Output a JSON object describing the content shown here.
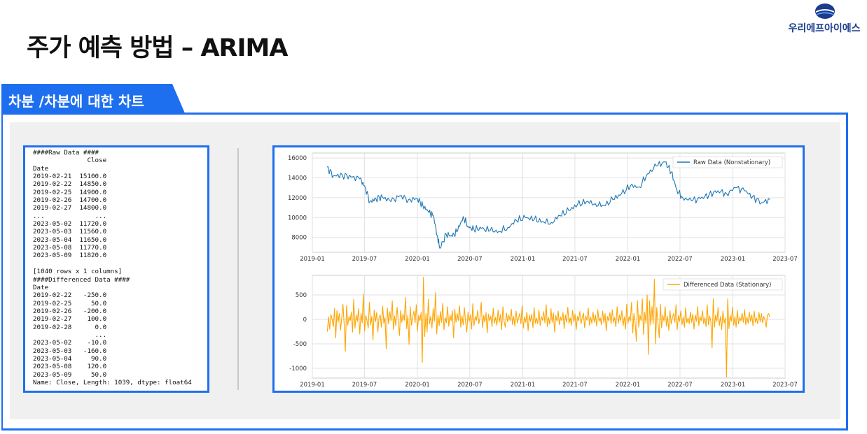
{
  "slide": {
    "title": "주가 예측 방법 – ARIMA",
    "logo_text": "우리에프아이에스",
    "section_label": "차분 /차분에 대한 차트"
  },
  "console": {
    "lines": [
      "####Raw Data ####",
      "              Close",
      "Date",
      "2019-02-21  15100.0",
      "2019-02-22  14850.0",
      "2019-02-25  14900.0",
      "2019-02-26  14700.0",
      "2019-02-27  14800.0",
      "...             ...",
      "2023-05-02  11720.0",
      "2023-05-03  11560.0",
      "2023-05-04  11650.0",
      "2023-05-08  11770.0",
      "2023-05-09  11820.0",
      "",
      "[1040 rows x 1 columns]",
      "####Differenced Data ####",
      "Date",
      "2019-02-22   -250.0",
      "2019-02-25     50.0",
      "2019-02-26   -200.0",
      "2019-02-27    100.0",
      "2019-02-28      0.0",
      "                ...",
      "2023-05-02    -10.0",
      "2023-05-03   -160.0",
      "2023-05-04     90.0",
      "2023-05-08    120.0",
      "2023-05-09     50.0",
      "Name: Close, Length: 1039, dtype: float64"
    ]
  },
  "chart_data": [
    {
      "type": "line",
      "legend": "Raw Data (Nonstationary)",
      "legend_position": "top-right",
      "color": "#1f77b4",
      "grid": true,
      "xlim": [
        "2019-01",
        "2023-07"
      ],
      "ylim": [
        6500,
        16500
      ],
      "x_ticks": [
        "2019-01",
        "2019-07",
        "2020-01",
        "2020-07",
        "2021-01",
        "2021-07",
        "2022-01",
        "2022-07",
        "2023-01",
        "2023-07"
      ],
      "y_ticks": [
        8000,
        10000,
        12000,
        14000,
        16000
      ],
      "series": [
        {
          "x": [
            "2019-02-21",
            "2019-03-15",
            "2019-04-15",
            "2019-05-15",
            "2019-06-15",
            "2019-07-01",
            "2019-07-20",
            "2019-08-10",
            "2019-09-01",
            "2019-10-01",
            "2019-11-01",
            "2019-12-01",
            "2020-01-01",
            "2020-01-20",
            "2020-02-10",
            "2020-02-25",
            "2020-03-10",
            "2020-03-19",
            "2020-04-10",
            "2020-05-01",
            "2020-05-20",
            "2020-06-08",
            "2020-06-25",
            "2020-07-15",
            "2020-08-10",
            "2020-09-10",
            "2020-10-10",
            "2020-11-10",
            "2020-12-10",
            "2021-01-10",
            "2021-02-10",
            "2021-03-10",
            "2021-04-10",
            "2021-05-10",
            "2021-06-10",
            "2021-07-10",
            "2021-08-10",
            "2021-09-10",
            "2021-10-10",
            "2021-11-10",
            "2021-12-10",
            "2022-01-10",
            "2022-02-10",
            "2022-03-10",
            "2022-04-10",
            "2022-05-10",
            "2022-06-01",
            "2022-06-20",
            "2022-07-10",
            "2022-08-10",
            "2022-09-10",
            "2022-10-10",
            "2022-11-10",
            "2022-12-10",
            "2023-01-10",
            "2023-02-10",
            "2023-03-10",
            "2023-04-10",
            "2023-05-09"
          ],
          "values": [
            15100,
            14200,
            14300,
            14100,
            13900,
            13200,
            11600,
            11900,
            12100,
            11600,
            12200,
            11800,
            11900,
            11200,
            10500,
            10200,
            8200,
            6900,
            8300,
            8100,
            8700,
            10100,
            9100,
            8800,
            8900,
            8700,
            8600,
            9000,
            9700,
            10000,
            9800,
            9600,
            9500,
            10200,
            10700,
            11300,
            11600,
            11400,
            11200,
            11800,
            12400,
            13200,
            13100,
            14400,
            15200,
            15600,
            14600,
            12800,
            12000,
            11700,
            11900,
            12300,
            12700,
            12400,
            13000,
            12700,
            12100,
            11500,
            11820
          ]
        }
      ]
    },
    {
      "type": "line",
      "legend": "Differenced Data (Stationary)",
      "legend_position": "top-right",
      "color": "#ffa500",
      "grid": true,
      "xlim": [
        "2019-01",
        "2023-07"
      ],
      "ylim": [
        -1200,
        900
      ],
      "x_ticks": [
        "2019-01",
        "2019-07",
        "2020-01",
        "2020-07",
        "2021-01",
        "2021-07",
        "2022-01",
        "2022-07",
        "2023-01",
        "2023-07"
      ],
      "y_ticks": [
        -1000,
        -500,
        0,
        500
      ],
      "series": [
        {
          "x_start": "2019-02-22",
          "x_end": "2023-05-09",
          "values": [
            -250,
            50,
            -200,
            100,
            0,
            -150,
            220,
            -380,
            180,
            -60,
            120,
            -220,
            40,
            310,
            -90,
            -650,
            280,
            -120,
            60,
            -30,
            150,
            -260,
            410,
            -180,
            90,
            -40,
            220,
            -300,
            130,
            -70,
            520,
            -240,
            80,
            -20,
            -180,
            350,
            -110,
            60,
            -420,
            190,
            -50,
            140,
            -260,
            30,
            90,
            -160,
            270,
            -80,
            40,
            -600,
            230,
            -90,
            160,
            -30,
            380,
            -210,
            70,
            -130,
            250,
            -40,
            -330,
            180,
            -60,
            110,
            -20,
            450,
            -190,
            80,
            -510,
            260,
            -120,
            40,
            170,
            -70,
            300,
            -240,
            90,
            -30,
            140,
            -880,
            860,
            -350,
            120,
            -260,
            410,
            -90,
            60,
            -180,
            220,
            -40,
            550,
            -300,
            80,
            -130,
            160,
            -60,
            330,
            -210,
            40,
            -70,
            260,
            -140,
            90,
            -30,
            180,
            -380,
            210,
            -60,
            120,
            -20,
            280,
            -160,
            70,
            -110,
            240,
            -50,
            -260,
            150,
            -40,
            90,
            -200,
            320,
            -130,
            60,
            -20,
            180,
            -90,
            40,
            350,
            -170,
            80,
            -60,
            140,
            -280,
            110,
            -30,
            70,
            -150,
            230,
            -80,
            40,
            -120,
            190,
            -60,
            100,
            -210,
            260,
            -40,
            -160,
            130,
            -50,
            90,
            -30,
            210,
            -110,
            60,
            -140,
            170,
            -70,
            30,
            120,
            -90,
            280,
            -180,
            50,
            -60,
            150,
            -230,
            90,
            -40,
            110,
            -170,
            240,
            -80,
            30,
            -90,
            190,
            -130,
            60,
            -20,
            160,
            -70,
            300,
            -150,
            40,
            -100,
            220,
            -60,
            130,
            -260,
            80,
            -40,
            170,
            -110,
            50,
            -30,
            140,
            -190,
            90,
            -60,
            250,
            -80,
            30,
            -120,
            180,
            -50,
            110,
            -210,
            60,
            -30,
            160,
            -90,
            40,
            130,
            -170,
            70,
            -20,
            230,
            -120,
            50,
            -80,
            150,
            -60,
            90,
            -140,
            200,
            -40,
            30,
            -110,
            170,
            -70,
            120,
            -230,
            60,
            -30,
            140,
            -90,
            200,
            -60,
            40,
            -150,
            260,
            -80,
            90,
            -30,
            180,
            -130,
            50,
            -200,
            310,
            -90,
            60,
            -40,
            350,
            -280,
            120,
            -60,
            -450,
            380,
            -160,
            90,
            -30,
            420,
            -310,
            150,
            -80,
            500,
            -720,
            380,
            -120,
            260,
            -90,
            820,
            -500,
            240,
            -60,
            -380,
            310,
            -170,
            90,
            -40,
            260,
            -140,
            60,
            -230,
            180,
            -90,
            30,
            120,
            -60,
            300,
            -210,
            80,
            -40,
            170,
            -110,
            50,
            -160,
            240,
            -70,
            30,
            -90,
            150,
            -60,
            110,
            -200,
            90,
            -40,
            260,
            -130,
            60,
            -30,
            180,
            -90,
            40,
            -150,
            300,
            -110,
            70,
            -50,
            -580,
            420,
            -160,
            90,
            -40,
            240,
            -130,
            60,
            -210,
            170,
            -80,
            30,
            -1180,
            420,
            -190,
            80,
            -40,
            250,
            -120,
            60,
            -160,
            180,
            -90,
            40,
            -30,
            130,
            -60,
            200,
            -110,
            50,
            -80,
            150,
            -40,
            90,
            -130,
            170,
            -60,
            30,
            -90,
            140,
            -50,
            120,
            -70,
            60,
            -10,
            -160,
            90,
            120,
            50
          ]
        }
      ]
    }
  ]
}
